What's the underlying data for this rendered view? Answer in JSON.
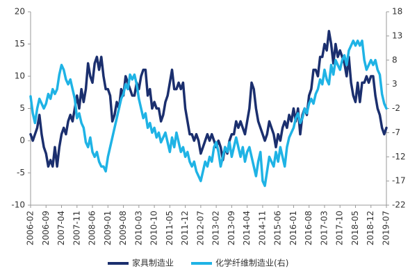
{
  "chart_data": {
    "type": "line",
    "categories": [
      "2006-02",
      null,
      null,
      null,
      null,
      null,
      null,
      "2006-09",
      null,
      null,
      null,
      null,
      null,
      null,
      "2007-04",
      null,
      null,
      null,
      null,
      null,
      null,
      "2007-11",
      null,
      null,
      null,
      null,
      null,
      null,
      "2008-06",
      null,
      null,
      null,
      null,
      null,
      null,
      "2009-01",
      null,
      null,
      null,
      null,
      null,
      null,
      "2009-08",
      null,
      null,
      null,
      null,
      null,
      null,
      "2010-03",
      null,
      null,
      null,
      null,
      null,
      null,
      "2010-10",
      null,
      null,
      null,
      null,
      null,
      null,
      "2011-05",
      null,
      null,
      null,
      null,
      null,
      null,
      "2011-12",
      null,
      null,
      null,
      null,
      null,
      null,
      "2012-07",
      null,
      null,
      null,
      null,
      null,
      null,
      "2013-02",
      null,
      null,
      null,
      null,
      null,
      null,
      "2013-09",
      null,
      null,
      null,
      null,
      null,
      null,
      "2014-04",
      null,
      null,
      null,
      null,
      null,
      null,
      "2014-11",
      null,
      null,
      null,
      null,
      null,
      null,
      "2015-06",
      null,
      null,
      null,
      null,
      null,
      null,
      "2016-01",
      null,
      null,
      null,
      null,
      null,
      null,
      "2016-08",
      null,
      null,
      null,
      null,
      null,
      null,
      "2017-03",
      null,
      null,
      null,
      null,
      null,
      null,
      "2017-10",
      null,
      null,
      null,
      null,
      null,
      null,
      "2018-05",
      null,
      null,
      null,
      null,
      null,
      null,
      "2018-12",
      null,
      null,
      null,
      null,
      null,
      null,
      "2019-07"
    ],
    "series": [
      {
        "name": "家具制造业",
        "color": "#1b2f6e",
        "values": [
          1,
          0,
          1,
          2,
          4,
          1,
          -1,
          -2,
          -4,
          -3,
          -4,
          -1,
          -4,
          -1,
          1,
          2,
          1,
          3,
          4,
          3,
          5,
          7,
          5,
          8,
          6,
          8,
          12,
          10,
          9,
          12,
          13,
          11,
          13,
          10,
          8,
          8,
          7,
          3,
          4,
          6,
          5,
          8,
          7,
          10,
          9,
          8,
          7,
          7,
          9,
          8,
          10,
          11,
          11,
          7,
          8,
          5,
          6,
          5,
          5,
          3,
          4,
          6,
          7,
          9,
          11,
          8,
          8,
          9,
          8,
          9,
          5,
          3,
          1,
          1,
          0,
          1,
          0,
          -2,
          -1,
          0,
          1,
          0,
          1,
          0,
          -1,
          0,
          -1,
          -3,
          -1,
          -2,
          0,
          1,
          1,
          3,
          2,
          3,
          2,
          1,
          3,
          5,
          9,
          8,
          5,
          3,
          2,
          1,
          0,
          1,
          3,
          2,
          1,
          -1,
          1,
          0,
          2,
          3,
          2,
          4,
          3,
          5,
          3,
          5,
          1,
          4,
          5,
          4,
          7,
          8,
          11,
          11,
          10,
          13,
          13,
          15,
          14,
          17,
          15,
          12,
          15,
          13,
          14,
          13,
          12,
          10,
          13,
          9,
          7,
          6,
          9,
          6,
          9,
          9,
          10,
          9,
          10,
          10,
          7,
          5,
          4,
          2,
          1,
          2
        ]
      },
      {
        "name": "化学纤维制造业(右)",
        "color": "#1fb3e5",
        "axis": "y2",
        "values": [
          0.5,
          -3,
          -5,
          -2,
          0,
          -1,
          -2,
          -1,
          1,
          0,
          2,
          1,
          2,
          5,
          7,
          6,
          4,
          3,
          4,
          2,
          0,
          -4,
          -3,
          -5,
          -6,
          -9,
          -10,
          -8,
          -11,
          -12,
          -11,
          -13,
          -14,
          -14,
          -15,
          -12,
          -10,
          -8,
          -6,
          -4,
          -2,
          0,
          1,
          3,
          2,
          5,
          4,
          5,
          3,
          0,
          -2,
          -4,
          -3,
          -6,
          -5,
          -7,
          -6,
          -8,
          -7,
          -9,
          -8,
          -7,
          -9,
          -11,
          -8,
          -10,
          -7,
          -9,
          -11,
          -10,
          -12,
          -11,
          -13,
          -14,
          -13,
          -15,
          -16,
          -17,
          -15,
          -13,
          -14,
          -12,
          -13,
          -10,
          -9,
          -11,
          -14,
          -12,
          -10,
          -11,
          -9,
          -12,
          -10,
          -8,
          -10,
          -12,
          -10,
          -13,
          -11,
          -10,
          -12,
          -14,
          -16,
          -13,
          -11,
          -17,
          -18,
          -15,
          -12,
          -13,
          -14,
          -11,
          -13,
          -10,
          -12,
          -14,
          -10,
          -8,
          -7,
          -6,
          -4,
          -3,
          -5,
          -4,
          -2,
          -3,
          -1,
          0,
          -1,
          1,
          2,
          4,
          3,
          6,
          4,
          3,
          7,
          5,
          8,
          7,
          6,
          8,
          9,
          7,
          10,
          11,
          12,
          11,
          12,
          11,
          12,
          8,
          6,
          7,
          8,
          7,
          8,
          6,
          5,
          1,
          -1,
          -2
        ]
      }
    ],
    "ylim": [
      -10,
      20
    ],
    "yticks": [
      -10,
      -5,
      0,
      5,
      10,
      15,
      20
    ],
    "y2lim": [
      -22,
      18
    ],
    "y2ticks": [
      -22,
      -17,
      -12,
      -7,
      -2,
      3,
      8,
      13,
      18
    ],
    "legend": "bottom"
  }
}
